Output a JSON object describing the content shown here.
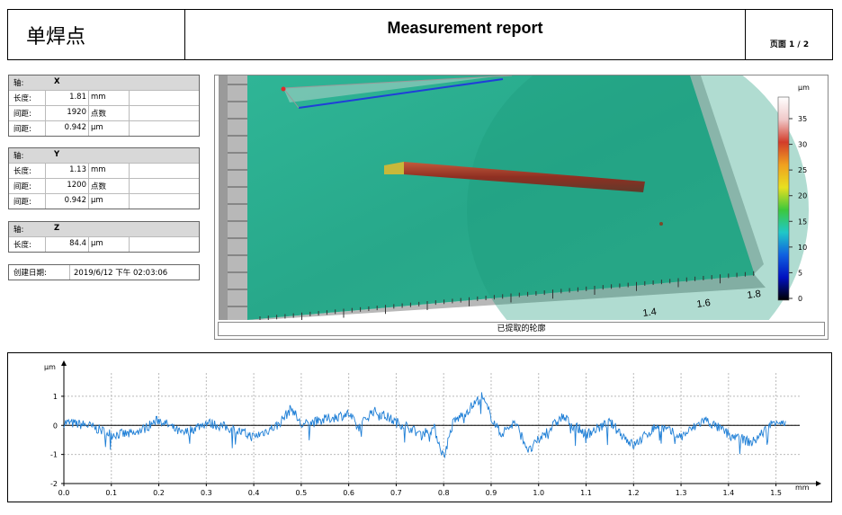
{
  "header": {
    "doc_title": "单焊点",
    "report_title": "Measurement report",
    "page_label": "页面 1 / 2"
  },
  "axis_x": {
    "header_key": "轴:",
    "header_value": "X",
    "rows": [
      {
        "key": "长度:",
        "value": "1.81",
        "unit": "mm"
      },
      {
        "key": "间距:",
        "value": "1920",
        "unit": "点数"
      },
      {
        "key": "间距:",
        "value": "0.942",
        "unit": "µm"
      }
    ]
  },
  "axis_y": {
    "header_key": "轴:",
    "header_value": "Y",
    "rows": [
      {
        "key": "长度:",
        "value": "1.13",
        "unit": "mm"
      },
      {
        "key": "间距:",
        "value": "1200",
        "unit": "点数"
      },
      {
        "key": "间距:",
        "value": "0.942",
        "unit": "µm"
      }
    ]
  },
  "axis_z": {
    "header_key": "轴:",
    "header_value": "Z",
    "rows": [
      {
        "key": "长度:",
        "value": "84.4",
        "unit": "µm"
      }
    ]
  },
  "created": {
    "key": "创建日期:",
    "value": "2019/6/12 下午 02:03:06"
  },
  "view3d": {
    "caption": "已提取的轮廓",
    "axis_ticks": [
      "1.4",
      "1.6",
      "1.8"
    ],
    "colorbar": {
      "unit": "µm",
      "ticks": [
        "35",
        "30",
        "25",
        "20",
        "15",
        "10",
        "5",
        "0"
      ],
      "stops": [
        "#ffffff",
        "#f0c8c8",
        "#d23c2a",
        "#f0a020",
        "#e8e020",
        "#3cc83c",
        "#20c8c8",
        "#1060e0",
        "#0010c0",
        "#000000"
      ]
    }
  },
  "chart_data": {
    "type": "line",
    "title": "",
    "xlabel": "mm",
    "ylabel": "µm",
    "xlim": [
      0,
      1.55
    ],
    "ylim": [
      -2,
      1.8
    ],
    "xticks": [
      "0.0",
      "0.1",
      "0.2",
      "0.3",
      "0.4",
      "0.5",
      "0.6",
      "0.7",
      "0.8",
      "0.9",
      "1.0",
      "1.1",
      "1.2",
      "1.3",
      "1.4",
      "1.5"
    ],
    "yticks": [
      "1",
      "0",
      "-1",
      "-2"
    ],
    "grid": true,
    "series": [
      {
        "color": "#1f7fd6",
        "x": [
          0.0,
          0.05,
          0.1,
          0.15,
          0.2,
          0.25,
          0.3,
          0.35,
          0.4,
          0.45,
          0.48,
          0.5,
          0.55,
          0.6,
          0.62,
          0.65,
          0.68,
          0.7,
          0.72,
          0.75,
          0.78,
          0.8,
          0.82,
          0.85,
          0.88,
          0.9,
          0.92,
          0.95,
          0.98,
          1.0,
          1.05,
          1.1,
          1.15,
          1.2,
          1.25,
          1.3,
          1.35,
          1.4,
          1.45,
          1.5,
          1.52
        ],
        "y": [
          0.1,
          0.0,
          -0.3,
          -0.3,
          0.2,
          -0.3,
          0.1,
          -0.1,
          -0.4,
          0.0,
          0.6,
          0.0,
          0.2,
          0.4,
          -0.1,
          0.5,
          0.3,
          0.1,
          0.0,
          -0.3,
          -0.1,
          -1.1,
          0.1,
          0.5,
          1.0,
          0.3,
          -0.3,
          0.1,
          -0.9,
          -0.5,
          0.3,
          -0.3,
          0.1,
          -0.7,
          0.0,
          -0.4,
          0.2,
          -0.3,
          -0.6,
          0.2,
          0.0
        ]
      }
    ]
  }
}
